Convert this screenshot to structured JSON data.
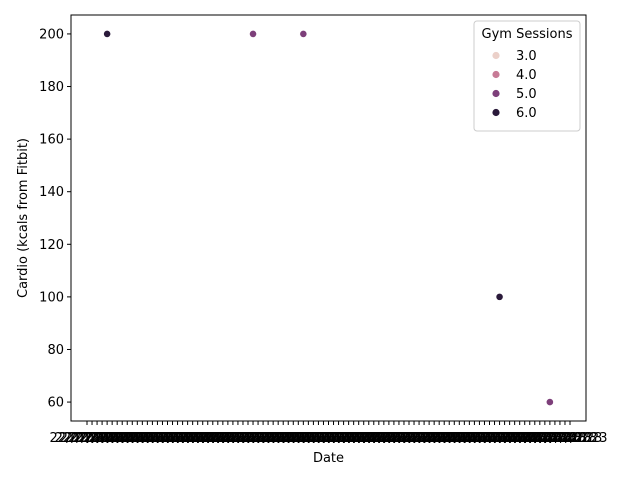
{
  "chart_data": {
    "type": "scatter",
    "title": "",
    "xlabel": "Date",
    "ylabel": "Cardio (kcals from Fitbit)",
    "ylim": [
      52.8,
      207.2
    ],
    "yticks": [
      60,
      80,
      100,
      120,
      140,
      160,
      180,
      200
    ],
    "x_category_count": 97,
    "x_tick_label": "22/07/2023",
    "grid": false,
    "legend": {
      "title": "Gym Sessions",
      "position": "upper right",
      "entries": [
        {
          "label": "3.0",
          "color": "#ebd0c9"
        },
        {
          "label": "4.0",
          "color": "#c77b96"
        },
        {
          "label": "5.0",
          "color": "#7d3f7a"
        },
        {
          "label": "6.0",
          "color": "#2a1a3a"
        }
      ]
    },
    "points": [
      {
        "x_index": 4,
        "y": 200,
        "gym_sessions": 6.0
      },
      {
        "x_index": 33,
        "y": 200,
        "gym_sessions": 5.0
      },
      {
        "x_index": 43,
        "y": 200,
        "gym_sessions": 5.0
      },
      {
        "x_index": 82,
        "y": 100,
        "gym_sessions": 6.0
      },
      {
        "x_index": 92,
        "y": 60,
        "gym_sessions": 5.0
      }
    ]
  }
}
